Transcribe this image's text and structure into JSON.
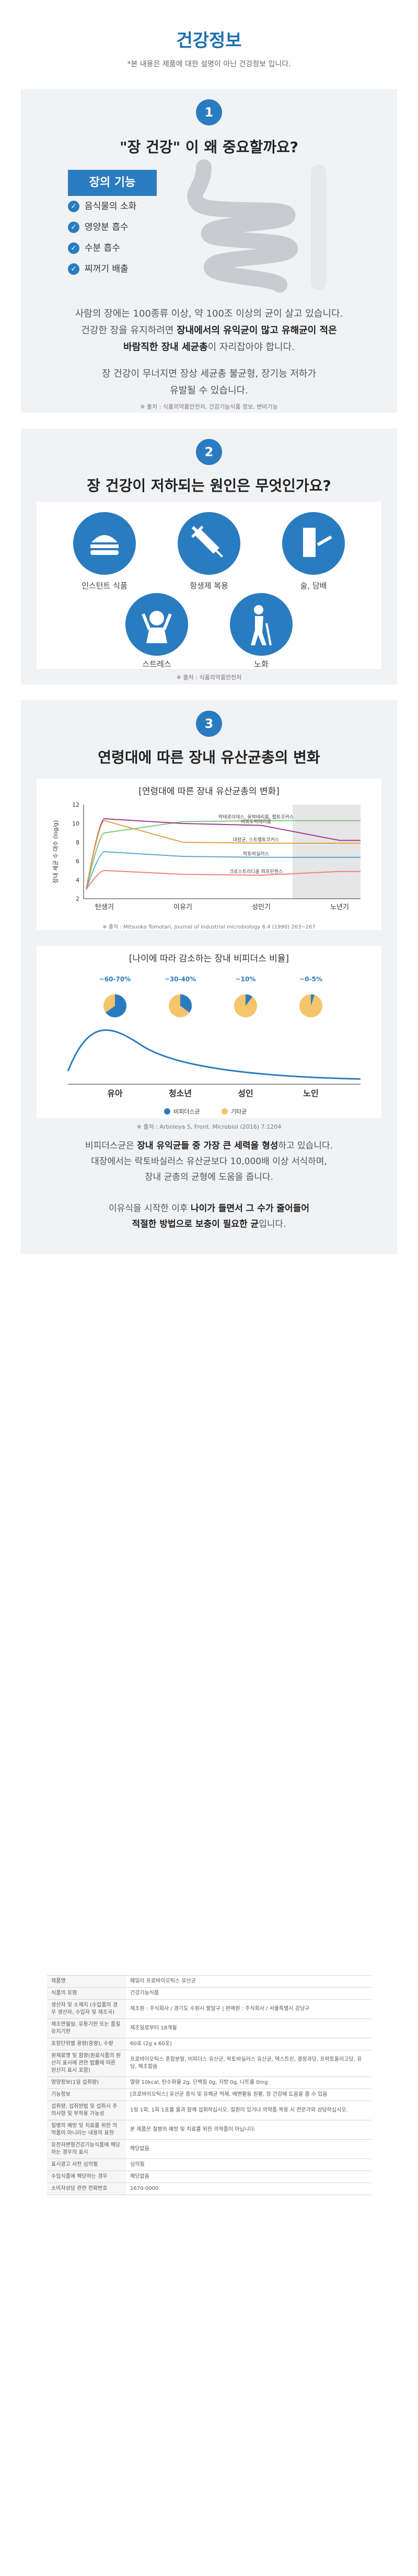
{
  "header": {
    "title": "건강정보",
    "subtitle": "*본 내용은 제품에 대한 설명이 아닌 건강정보 입니다."
  },
  "section1": {
    "number": "1",
    "heading": "\"장 건강\" 이 왜 중요할까요?",
    "func_title": "장의 기능",
    "functions": [
      "음식물의 소화",
      "영양분 흡수",
      "수분 흡수",
      "찌꺼기 배출"
    ],
    "para1_a": "사람의 장에는 100종류 이상, 약 100조 이상의 균이 살고 있습니다.",
    "para1_b": "건강한 장을 유지하려면 ",
    "para1_b_bold": "장내에서의 유익균이 많고 유해균이 적은",
    "para1_c_bold": "바람직한 장내 세균총",
    "para1_c": "이 자리잡아야 합니다.",
    "para2_a": "장 건강이 무너지면 장상 세균총 불균형, 장기능 저하가",
    "para2_b": "유발될 수 있습니다.",
    "source": "※ 출처 : 식품의약품안전처, 건강기능식품 정보, 변비기능"
  },
  "section2": {
    "number": "2",
    "heading": "장 건강이 저하되는 원인은 무엇인가요?",
    "causes": [
      "인스턴트 식품",
      "항생제 복용",
      "술, 담배",
      "스트레스",
      "노화"
    ],
    "source": "※ 출처 : 식품의약품안전처"
  },
  "section3": {
    "number": "3",
    "heading": "연령대에 따른 장내 유산균총의 변화",
    "chart1": {
      "title": "[연령대에 따른 장내 유산균총의 변화]",
      "ylabel": "장내 세균 수 대수 (log/g)",
      "source": "※ 출처 : Mitsuoka Tomotari, Journal of industrial microbiology 6.4 (1990) 263~267"
    },
    "chart2": {
      "title": "[나이에 따라 감소하는 장내 비피더스 비율]",
      "source": "※ 출처 : Arboleya S, Front. Microbiol (2016) 7:1204",
      "legend": [
        "비피더스균",
        "기타균"
      ]
    },
    "para1_a": "비피더스균은 ",
    "para1_a_bold": "장내 유익균들 중 가장 큰 세력을 형성",
    "para1_a2": "하고 있습니다.",
    "para1_b": "대장에서는 락토바실러스 유산균보다 10,000배 이상 서식하며,",
    "para1_c": "장내 균총의 균형에 도움을 줍니다.",
    "para2_a": "이유식을 시작한 이후 ",
    "para2_a_bold": "나이가 들면서 그 수가 줄어들어",
    "para2_b_bold": "적절한 방법으로 보충이 필요한 균",
    "para2_b": "입니다."
  },
  "chart_data": [
    {
      "type": "line",
      "title": "[연령대에 따른 장내 유산균총의 변화]",
      "ylabel": "장내 세균 수 대수 (log/g)",
      "ylim": [
        2,
        12
      ],
      "x": [
        "탄생기",
        "이유기",
        "성인기",
        "노년기"
      ],
      "series": [
        {
          "name": "박테로이데스, 유박테리움, 펩토코커스",
          "color": "#7cc77a",
          "values": [
            9,
            10.2,
            10.3,
            10.3
          ]
        },
        {
          "name": "비피도박테리움",
          "color": "#a23a8a",
          "values": [
            10.5,
            10,
            9.8,
            8.2
          ]
        },
        {
          "name": "대장균, 스트렙토코커스",
          "color": "#e0a23a",
          "values": [
            10.3,
            8,
            7.9,
            7.9
          ]
        },
        {
          "name": "락토바실러스",
          "color": "#5aa7d8",
          "values": [
            7,
            6.5,
            6.4,
            6.4
          ]
        },
        {
          "name": "크로스트리디움 퍼프린젠스",
          "color": "#f07f7f",
          "values": [
            5,
            4.6,
            4.5,
            4.9
          ]
        }
      ]
    },
    {
      "type": "pie",
      "title": "[나이에 따라 감소하는 장내 비피더스 비율]",
      "categories": [
        "유아",
        "청소년",
        "성인",
        "노인"
      ],
      "ratio_labels": [
        "~60-70%",
        "~30-40%",
        "~10%",
        "~0-5%"
      ],
      "values": [
        65,
        35,
        10,
        5
      ],
      "series": [
        {
          "name": "비피더스균",
          "color": "#2a7cc0"
        },
        {
          "name": "기타균",
          "color": "#f5c46b"
        }
      ]
    }
  ],
  "info_table": [
    {
      "k": "제품명",
      "v": "페밀리 프로바이오틱스 유산균"
    },
    {
      "k": "식품의 유형",
      "v": "건강기능식품"
    },
    {
      "k": "생산자 및 소재지 (수입품의 경우 생산자, 수입자 및 제조국)",
      "v": "제조원 : 주식회사 / 경기도 수원시 팔달구 | 판매원 : 주식회사 / 서울특별시 강남구"
    },
    {
      "k": "제조연월일, 유통기한 또는 품질유지기한",
      "v": "제조일로부터 18개월"
    },
    {
      "k": "포장단위별 용량(중량), 수량",
      "v": "60포 (2g x 60포)"
    },
    {
      "k": "원재료명 및 함량(원료식품의 원산지 표시에 관한 법률에 따른 원산지 표시 포함)",
      "v": "프로바이오틱스 혼합분말, 비피더스 유산균, 락토바실러스 유산균, 덱스트린, 결정과당, 프락토올리고당, 유당, 해조칼슘"
    },
    {
      "k": "영양정보(1일 섭취량)",
      "v": "열량 10kcal, 탄수화물 2g, 단백질 0g, 지방 0g, 나트륨 0mg"
    },
    {
      "k": "기능정보",
      "v": "[프로바이오틱스] 유산균 증식 및 유해균 억제, 배변활동 원활, 장 건강에 도움을 줄 수 있음"
    },
    {
      "k": "섭취량, 섭취방법 및 섭취시 주의사항 및 부작용 가능성",
      "v": "1일 1회, 1회 1포를 물과 함께 섭취하십시오. 질환이 있거나 의약품 복용 시 전문가와 상담하십시오."
    },
    {
      "k": "질병의 예방 및 치료를 위한 의약품이 아니라는 내용의 표현",
      "v": "본 제품은 질병의 예방 및 치료를 위한 의약품이 아닙니다."
    },
    {
      "k": "유전자변형건강기능식품에 해당하는 경우의 표시",
      "v": "해당없음"
    },
    {
      "k": "표시광고 사전 심의필",
      "v": "심의필"
    },
    {
      "k": "수입식품에 해당하는 경우",
      "v": "해당없음"
    },
    {
      "k": "소비자상담 관련 전화번호",
      "v": "1670-0000"
    }
  ]
}
